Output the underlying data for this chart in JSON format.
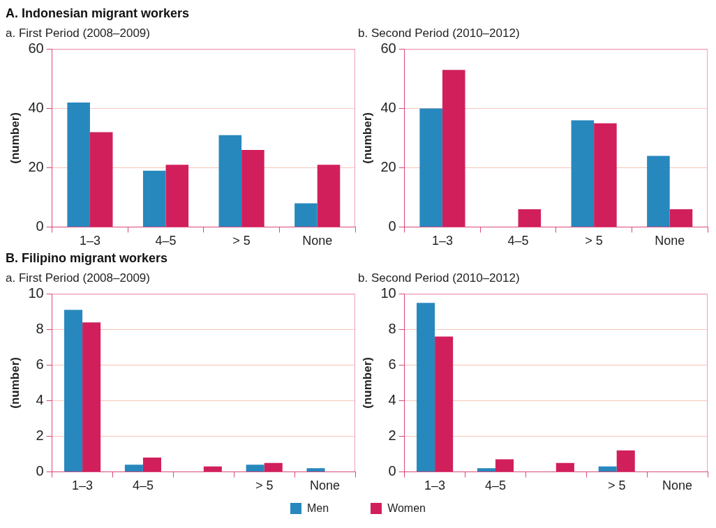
{
  "chart_data": [
    {
      "type": "bar",
      "title": "A. Indonesian migrant workers",
      "subtitle": "a. First Period (2008–2009)",
      "ylabel": "(number)",
      "categories": [
        "1–3",
        "4–5",
        "> 5",
        "None"
      ],
      "ylim": [
        0,
        60
      ],
      "yticks": [
        0,
        20,
        40,
        60
      ],
      "grid": "y",
      "legend": "bottom",
      "series": [
        {
          "name": "Men",
          "color": "#2788bd",
          "values": [
            42,
            19,
            31,
            8
          ]
        },
        {
          "name": "Women",
          "color": "#d11f5c",
          "values": [
            32,
            21,
            26,
            21
          ]
        }
      ]
    },
    {
      "type": "bar",
      "subtitle": "b. Second Period (2010–2012)",
      "ylabel": "(number)",
      "categories": [
        "1–3",
        "4–5",
        "> 5",
        "None"
      ],
      "ylim": [
        0,
        60
      ],
      "yticks": [
        0,
        20,
        40,
        60
      ],
      "grid": "y",
      "series": [
        {
          "color": "#2788bd",
          "values": [
            40,
            0,
            36,
            24
          ]
        },
        {
          "color": "#d11f5c",
          "values": [
            53,
            6,
            35,
            6
          ]
        }
      ]
    },
    {
      "type": "bar",
      "title": "B. Filipino migrant workers",
      "subtitle": "a. First Period (2008–2009)",
      "ylabel": "(number)",
      "categories": [
        "1–3",
        "4–5",
        null,
        "> 5",
        "None"
      ],
      "ylim": [
        0,
        10
      ],
      "yticks": [
        0,
        2,
        4,
        6,
        8,
        10
      ],
      "grid": "y",
      "series": [
        {
          "color": "#2788bd",
          "values": [
            9.1,
            0.4,
            0,
            0.4,
            0.2
          ]
        },
        {
          "color": "#d11f5c",
          "values": [
            8.4,
            0.8,
            0.3,
            0.5,
            0
          ]
        }
      ]
    },
    {
      "type": "bar",
      "subtitle": "b. Second Period (2010–2012)",
      "ylabel": "(number)",
      "categories": [
        "1–3",
        "4–5",
        null,
        "> 5",
        "None"
      ],
      "ylim": [
        0,
        10
      ],
      "yticks": [
        0,
        2,
        4,
        6,
        8,
        10
      ],
      "grid": "y",
      "series": [
        {
          "color": "#2788bd",
          "values": [
            9.5,
            0.2,
            0,
            0.3,
            0
          ]
        },
        {
          "color": "#d11f5c",
          "values": [
            7.6,
            0.7,
            0.5,
            1.2,
            0
          ]
        }
      ]
    }
  ]
}
